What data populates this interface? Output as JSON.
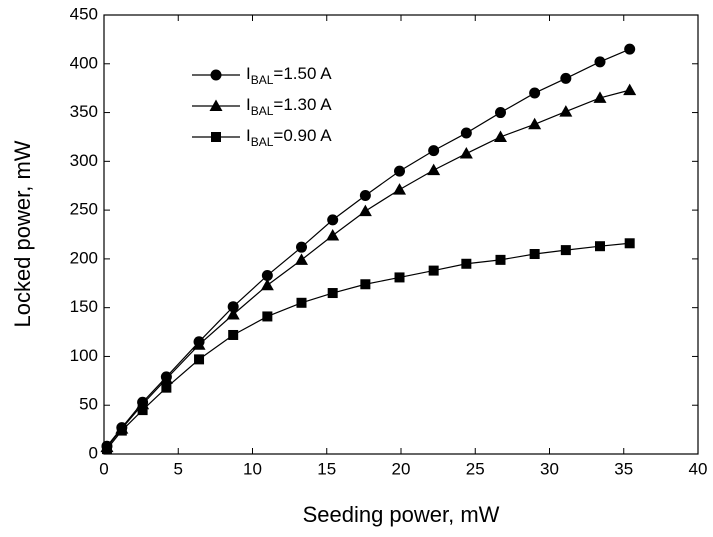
{
  "chart_data": {
    "type": "line",
    "x_label": "Seeding power, mW",
    "y_label": "Locked power, mW",
    "x": [
      0.2,
      1.2,
      2.6,
      4.2,
      6.4,
      8.7,
      11.0,
      13.3,
      15.4,
      17.6,
      19.9,
      22.2,
      24.4,
      26.7,
      29.0,
      31.1,
      33.4,
      35.4
    ],
    "series": [
      {
        "name": "IBAL=1.50 A",
        "color": "#000000",
        "marker": "circle",
        "values": [
          8,
          27,
          53,
          79,
          115,
          151,
          183,
          212,
          240,
          265,
          290,
          311,
          329,
          350,
          370,
          385,
          402,
          415
        ]
      },
      {
        "name": "IBAL=1.30 A",
        "color": "#000000",
        "marker": "triangle",
        "values": [
          7,
          26,
          51,
          77,
          112,
          143,
          173,
          199,
          224,
          249,
          271,
          291,
          308,
          325,
          338,
          351,
          365,
          373
        ]
      },
      {
        "name": "IBAL=0.90 A",
        "color": "#000000",
        "marker": "square",
        "values": [
          5,
          24,
          45,
          68,
          97,
          122,
          141,
          155,
          165,
          174,
          181,
          188,
          195,
          199,
          205,
          209,
          213,
          216
        ]
      }
    ],
    "xlim": [
      0,
      40
    ],
    "xticks": [
      0,
      5,
      10,
      15,
      20,
      25,
      30,
      35,
      40
    ],
    "ylim": [
      0,
      450
    ],
    "yticks": [
      0,
      50,
      100,
      150,
      200,
      250,
      300,
      350,
      400,
      450
    ],
    "grid": false,
    "legend": "upper-left"
  }
}
